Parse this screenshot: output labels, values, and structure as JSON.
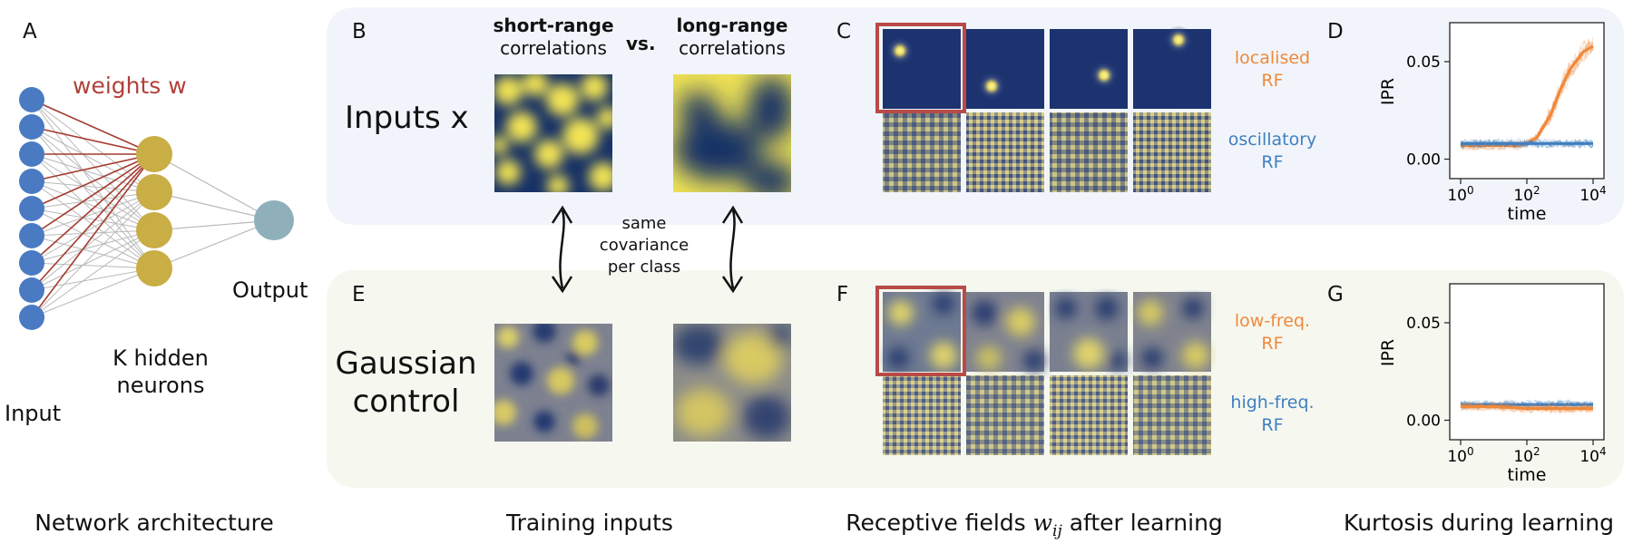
{
  "panel_letters": {
    "a": "A",
    "b": "B",
    "c": "C",
    "d": "D",
    "e": "E",
    "f": "F",
    "g": "G"
  },
  "network": {
    "weights_label": "weights w",
    "output_label": "Output",
    "hidden_label_line1": "K hidden",
    "hidden_label_line2": "neurons",
    "input_label": "Input",
    "input_count": 9,
    "hidden_count": 4,
    "colors": {
      "input": "#4a7ac2",
      "hidden": "#c9ad45",
      "output": "#8fb0ba",
      "weights": "#a33a2e"
    }
  },
  "training_inputs": {
    "short_title_bold": "short-range",
    "short_title": "correlations",
    "vs": "vs.",
    "long_title_bold": "long-range",
    "long_title": "correlations",
    "inputs_row_label": "Inputs x",
    "gaussian_label_line1": "Gaussian",
    "gaussian_label_line2": "control",
    "same_cov_line1": "same",
    "same_cov_line2": "covariance",
    "same_cov_line3": "per class"
  },
  "receptive_fields": {
    "top_label_line1": "localised",
    "top_label_line2": "RF",
    "bottom_label_line1": "oscillatory",
    "bottom_label_line2": "RF",
    "gauss_top_line1": "low-freq.",
    "gauss_top_line2": "RF",
    "gauss_bottom_line1": "high-freq.",
    "gauss_bottom_line2": "RF",
    "colors": {
      "top": "#f0883a",
      "bottom": "#3f7fc0",
      "highlight": "#b84a48"
    }
  },
  "captions": {
    "network": "Network architecture",
    "training": "Training inputs",
    "rf_before": "Receptive fields ",
    "rf_symbol": "w",
    "rf_subscript": "ij",
    "rf_after": " after learning",
    "kurtosis": "Kurtosis during learning"
  },
  "chart_data": [
    {
      "type": "line",
      "panel": "D",
      "xlabel": "time",
      "ylabel": "IPR",
      "xscale": "log",
      "xlim": [
        1,
        10000
      ],
      "ylim": [
        -0.01,
        0.07
      ],
      "xticks": [
        1,
        100,
        10000
      ],
      "yticks": [
        0.0,
        0.05
      ],
      "xtick_labels": [
        "10^0",
        "10^2",
        "10^4"
      ],
      "ytick_labels": [
        "0.00",
        "0.05"
      ],
      "series": [
        {
          "color": "#f0883a",
          "x": [
            1,
            10,
            50,
            100,
            200,
            500,
            1000,
            2000,
            5000,
            10000
          ],
          "y": [
            0.007,
            0.007,
            0.007,
            0.008,
            0.011,
            0.022,
            0.035,
            0.046,
            0.055,
            0.058
          ]
        },
        {
          "color": "#3f7fc0",
          "x": [
            1,
            10,
            100,
            1000,
            10000
          ],
          "y": [
            0.008,
            0.008,
            0.008,
            0.008,
            0.008
          ]
        }
      ]
    },
    {
      "type": "line",
      "panel": "G",
      "xlabel": "time",
      "ylabel": "IPR",
      "xscale": "log",
      "xlim": [
        1,
        10000
      ],
      "ylim": [
        -0.01,
        0.07
      ],
      "xticks": [
        1,
        100,
        10000
      ],
      "yticks": [
        0.0,
        0.05
      ],
      "xtick_labels": [
        "10^0",
        "10^2",
        "10^4"
      ],
      "ytick_labels": [
        "0.00",
        "0.05"
      ],
      "series": [
        {
          "color": "#3f7fc0",
          "x": [
            1,
            10,
            100,
            1000,
            10000
          ],
          "y": [
            0.008,
            0.008,
            0.008,
            0.008,
            0.008
          ]
        },
        {
          "color": "#f0883a",
          "x": [
            1,
            10,
            100,
            1000,
            10000
          ],
          "y": [
            0.007,
            0.007,
            0.006,
            0.006,
            0.006
          ]
        }
      ]
    }
  ]
}
